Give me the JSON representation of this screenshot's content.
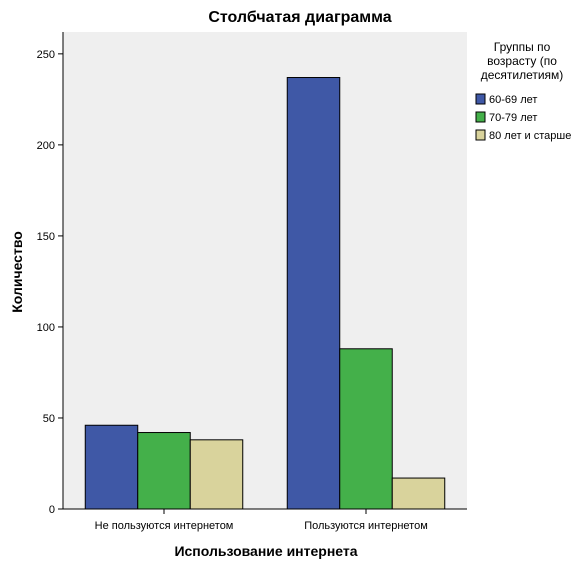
{
  "chart_data": {
    "type": "bar",
    "title": "Столбчатая диаграмма",
    "xlabel": "Использование интернета",
    "ylabel": "Количество",
    "categories": [
      "Не пользуются интернетом",
      "Пользуются интернетом"
    ],
    "series": [
      {
        "name": "60-69 лет",
        "color": "#3f58a6",
        "values": [
          46,
          237
        ]
      },
      {
        "name": "70-79 лет",
        "color": "#44b04a",
        "values": [
          42,
          88
        ]
      },
      {
        "name": "80 лет и старше",
        "color": "#d9d39c",
        "values": [
          38,
          17
        ]
      }
    ],
    "ylim": [
      0,
      262
    ],
    "yticks": [
      0,
      50,
      100,
      150,
      200,
      250
    ],
    "legend": {
      "title_lines": [
        "Группы по",
        "возрасту (по",
        "десятилетиям)"
      ],
      "position": "right"
    },
    "grid": false,
    "plot_background": "#efefef"
  }
}
